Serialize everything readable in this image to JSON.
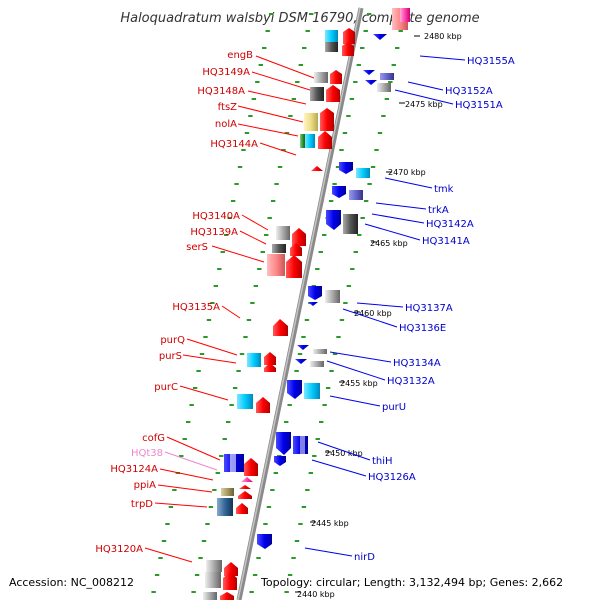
{
  "title": "Haloquadratum walsbyi DSM 16790, complete genome",
  "footer": {
    "accession": "Accession: NC_008212",
    "stats": "Topology: circular; Length: 3,132,494 bp; Genes: 2,662"
  },
  "colors": {
    "left_label": "#d00000",
    "right_label": "#0000cc",
    "trna_label": "#ee88cc",
    "backbone": "#9a9a9a",
    "tick_green": "#2a9a2a",
    "forward_arrow": "#ff0000",
    "reverse_arrow": "#0000ee",
    "cog_cyan": "#00ccff",
    "cog_grey": "#999999",
    "cog_yellow": "#eedd88",
    "cog_pink": "#ff8888",
    "cog_purple": "#6666cc"
  },
  "scale_labels": [
    "2480 kbp",
    "2475 kbp",
    "2470 kbp",
    "2465 kbp",
    "2460 kbp",
    "2455 kbp",
    "2450 kbp",
    "2445 kbp",
    "2440 kbp"
  ],
  "left_genes": [
    "engB",
    "HQ3149A",
    "HQ3148A",
    "ftsZ",
    "nolA",
    "HQ3144A",
    "HQ3140A",
    "HQ3139A",
    "serS",
    "HQ3135A",
    "purQ",
    "purS",
    "purC",
    "cofG",
    "HQt38",
    "HQ3124A",
    "ppiA",
    "trpD",
    "HQ3120A"
  ],
  "right_genes": [
    "HQ3155A",
    "HQ3152A",
    "HQ3151A",
    "tmk",
    "trkA",
    "HQ3142A",
    "HQ3141A",
    "HQ3137A",
    "HQ3136E",
    "HQ3134A",
    "HQ3132A",
    "purU",
    "thiH",
    "HQ3126A",
    "nirD"
  ]
}
